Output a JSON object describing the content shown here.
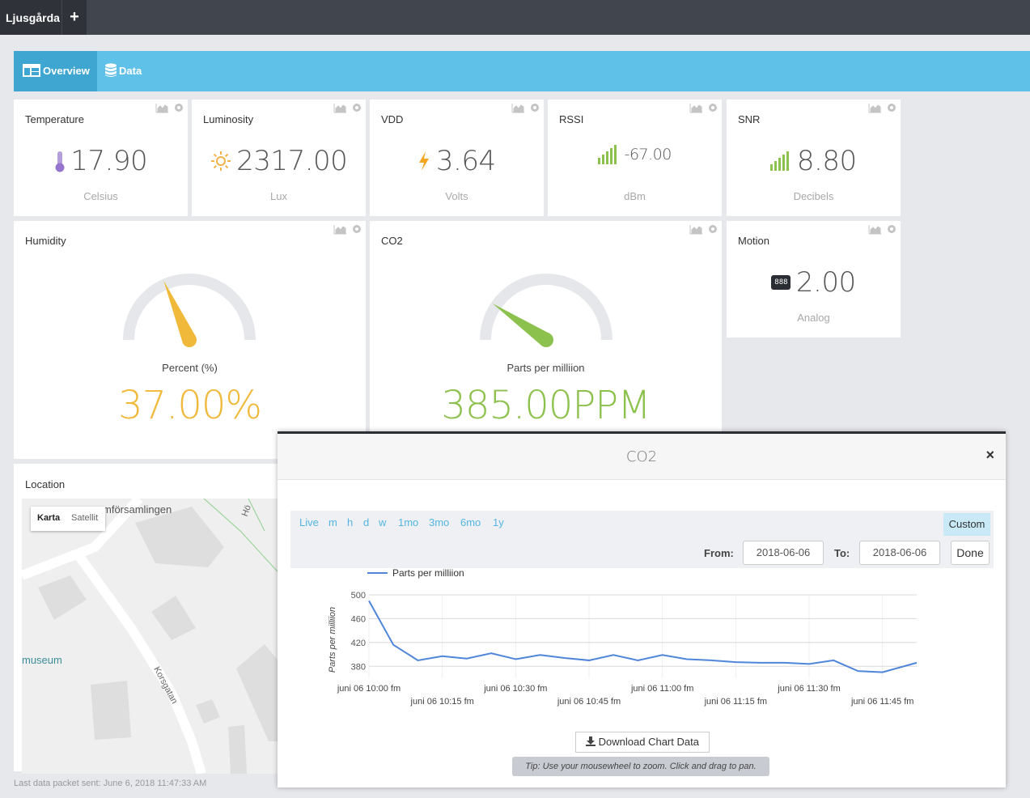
{
  "topbar": {
    "active_tab": "Ljusgårda",
    "add_label": "+"
  },
  "nav": {
    "overview_label": "Overview",
    "data_label": "Data"
  },
  "widgets": {
    "temperature": {
      "title": "Temperature",
      "value": "17.90",
      "unit": "Celsius",
      "icon": "thermometer-icon"
    },
    "luminosity": {
      "title": "Luminosity",
      "value": "2317.00",
      "unit": "Lux",
      "icon": "sun-icon"
    },
    "vdd": {
      "title": "VDD",
      "value": "3.64",
      "unit": "Volts",
      "icon": "lightning-icon"
    },
    "rssi": {
      "title": "RSSI",
      "value": "-67.00",
      "unit": "dBm",
      "icon": "signal-icon"
    },
    "snr": {
      "title": "SNR",
      "value": "8.80",
      "unit": "Decibels",
      "icon": "signal-icon"
    },
    "humidity": {
      "title": "Humidity",
      "gauge_label": "Percent (%)",
      "value": "37.00%",
      "level": 37,
      "color": "#f0b93a"
    },
    "co2": {
      "title": "CO2",
      "gauge_label": "Parts per milliion",
      "value": "385.00PPM",
      "level": 19,
      "color": "#8dc14e"
    },
    "motion": {
      "title": "Motion",
      "value": "2.00",
      "unit": "Analog",
      "icon": "counter-icon",
      "icon_text": "888"
    },
    "location": {
      "title": "Location",
      "map_type_map": "Karta",
      "map_type_satellite": "Satellit",
      "map_labels": {
        "church": "mförsamlingen",
        "museum": "museum",
        "street1": "Korsgatan",
        "street2": "Hö"
      }
    }
  },
  "footer": {
    "last_packet": "Last data packet sent: June 6, 2018 11:47:33 AM"
  },
  "modal": {
    "title": "CO2",
    "close_label": "×",
    "ranges": [
      "Live",
      "m",
      "h",
      "d",
      "w",
      "1mo",
      "3mo",
      "6mo",
      "1y"
    ],
    "custom_label": "Custom",
    "from_label": "From:",
    "from_value": "2018-06-06",
    "to_label": "To:",
    "to_value": "2018-06-06",
    "done_label": "Done",
    "download_label": "Download Chart Data",
    "tip": "Tip: Use your mousewheel to zoom. Click and drag to pan."
  },
  "colors": {
    "accent": "#5fc0e8",
    "nav_active": "#3fa6d2",
    "line": "#4f86d9"
  },
  "chart_data": {
    "type": "line",
    "title": "",
    "ylabel": "Parts per milliion",
    "legend": "top-left",
    "ylim": [
      360,
      500
    ],
    "yticks": [
      "500",
      "460",
      "420",
      "380"
    ],
    "xlim": [
      "10:00",
      "11:52"
    ],
    "xticks": [
      {
        "x": "10:00",
        "label": "juni 06 10:00 fm"
      },
      {
        "x": "10:15",
        "label": "juni 06 10:15 fm"
      },
      {
        "x": "10:30",
        "label": "juni 06 10:30 fm"
      },
      {
        "x": "10:45",
        "label": "juni 06 10:45 fm"
      },
      {
        "x": "11:00",
        "label": "juni 06 11:00 fm"
      },
      {
        "x": "11:15",
        "label": "juni 06 11:15 fm"
      },
      {
        "x": "11:30",
        "label": "juni 06 11:30 fm"
      },
      {
        "x": "11:45",
        "label": "juni 06 11:45 fm"
      }
    ],
    "series": [
      {
        "name": "Parts per milliion",
        "x": [
          "10:00",
          "10:05",
          "10:10",
          "10:15",
          "10:20",
          "10:25",
          "10:30",
          "10:35",
          "10:40",
          "10:45",
          "10:50",
          "10:55",
          "11:00",
          "11:05",
          "11:10",
          "11:15",
          "11:20",
          "11:25",
          "11:30",
          "11:35",
          "11:40",
          "11:45",
          "11:52"
        ],
        "values": [
          490,
          416,
          390,
          397,
          393,
          402,
          392,
          399,
          394,
          390,
          399,
          390,
          399,
          392,
          390,
          387,
          386,
          386,
          384,
          390,
          372,
          370,
          386
        ]
      }
    ]
  }
}
